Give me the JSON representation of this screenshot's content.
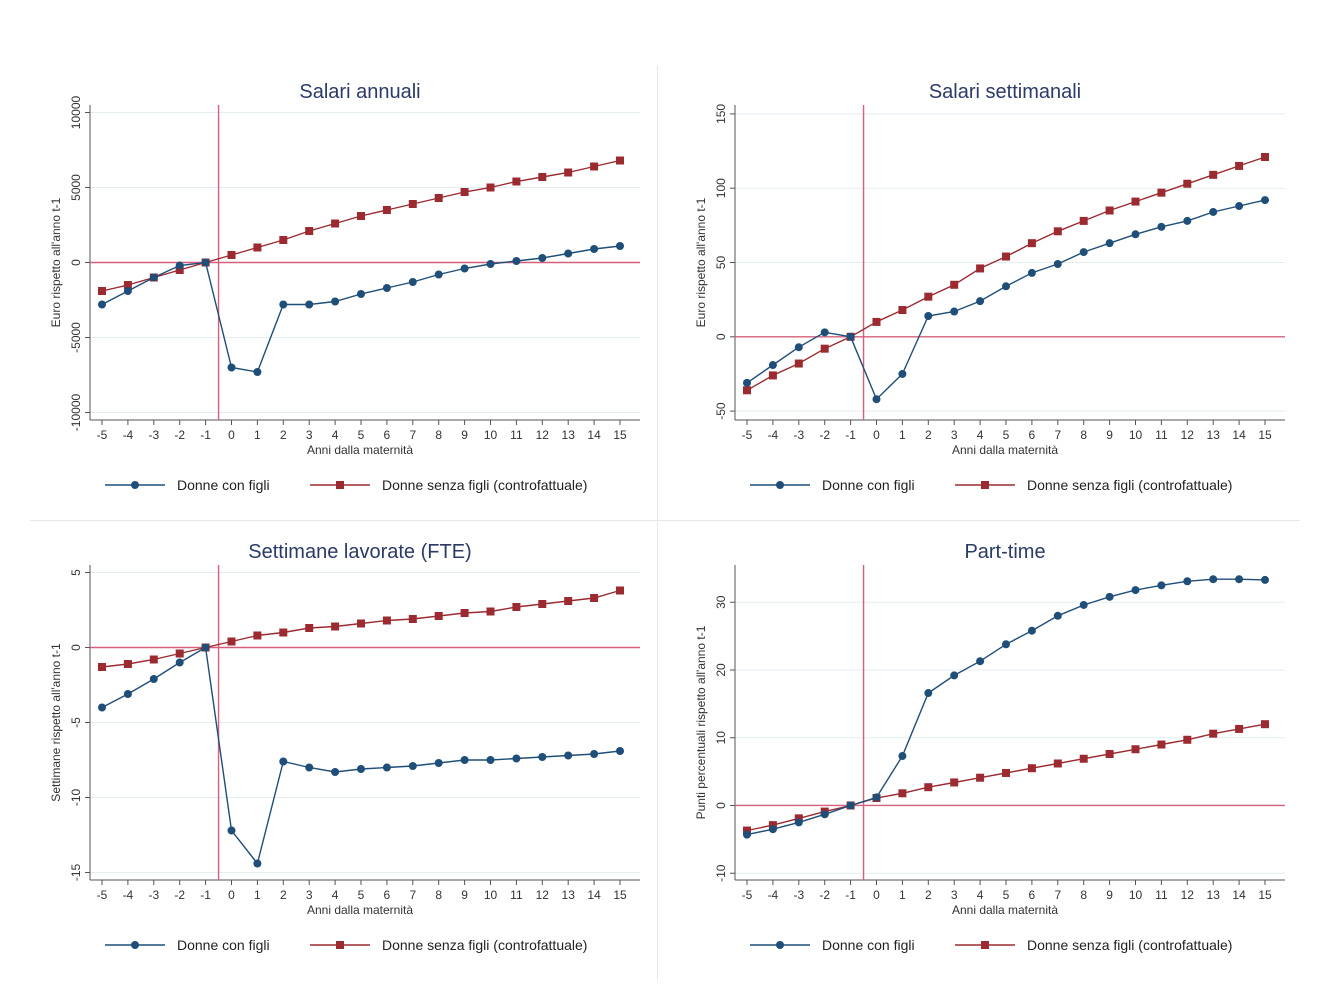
{
  "colors": {
    "blue": "#1f4e79",
    "red": "#9b2b31",
    "ref": "#d6607a",
    "grid": "#e4eef0",
    "axis": "#555555",
    "title": "#2b3a67"
  },
  "legend": {
    "with_children": "Donne con figli",
    "without_children": "Donne senza figli (controfattuale)"
  },
  "chart_data": [
    {
      "type": "line",
      "title": "Salari annuali",
      "xlabel": "Anni dalla maternità",
      "ylabel": "Euro rispetto all'anno t-1",
      "x": [
        -5,
        -4,
        -3,
        -2,
        -1,
        0,
        1,
        2,
        3,
        4,
        5,
        6,
        7,
        8,
        9,
        10,
        11,
        12,
        13,
        14,
        15
      ],
      "ylim": [
        -10500,
        10500
      ],
      "yticks": [
        -10000,
        -5000,
        0,
        5000,
        10000
      ],
      "ytick_labels": [
        "-10000",
        "-5000",
        "0",
        "5000",
        "10000"
      ],
      "xline": -0.5,
      "yline": 0,
      "series": [
        {
          "name": "Donne con figli",
          "marker": "circle",
          "values": [
            -2800,
            -1900,
            -1000,
            -200,
            0,
            -7000,
            -7300,
            -2800,
            -2800,
            -2600,
            -2100,
            -1700,
            -1300,
            -800,
            -400,
            -100,
            100,
            300,
            600,
            900,
            1100
          ]
        },
        {
          "name": "Donne senza figli (controfattuale)",
          "marker": "square",
          "values": [
            -1900,
            -1500,
            -1000,
            -500,
            0,
            500,
            1000,
            1500,
            2100,
            2600,
            3100,
            3500,
            3900,
            4300,
            4700,
            5000,
            5400,
            5700,
            6000,
            6400,
            6800
          ]
        }
      ]
    },
    {
      "type": "line",
      "title": "Salari settimanali",
      "xlabel": "Anni dalla maternità",
      "ylabel": "Euro rispetto all'anno t-1",
      "x": [
        -5,
        -4,
        -3,
        -2,
        -1,
        0,
        1,
        2,
        3,
        4,
        5,
        6,
        7,
        8,
        9,
        10,
        11,
        12,
        13,
        14,
        15
      ],
      "ylim": [
        -56,
        156
      ],
      "yticks": [
        -50,
        0,
        50,
        100,
        150
      ],
      "ytick_labels": [
        "-50",
        "0",
        "50",
        "100",
        "150"
      ],
      "xline": -0.5,
      "yline": 0,
      "series": [
        {
          "name": "Donne con figli",
          "marker": "circle",
          "values": [
            -31,
            -19,
            -7,
            3,
            0,
            -42,
            -25,
            14,
            17,
            24,
            34,
            43,
            49,
            57,
            63,
            69,
            74,
            78,
            84,
            88,
            92
          ]
        },
        {
          "name": "Donne senza figli (controfattuale)",
          "marker": "square",
          "values": [
            -36,
            -26,
            -18,
            -8,
            0,
            10,
            18,
            27,
            35,
            46,
            54,
            63,
            71,
            78,
            85,
            91,
            97,
            103,
            109,
            115,
            121
          ]
        }
      ]
    },
    {
      "type": "line",
      "title": "Settimane lavorate (FTE)",
      "xlabel": "Anni dalla maternità",
      "ylabel": "Settimane rispetto all'anno t-1",
      "x": [
        -5,
        -4,
        -3,
        -2,
        -1,
        0,
        1,
        2,
        3,
        4,
        5,
        6,
        7,
        8,
        9,
        10,
        11,
        12,
        13,
        14,
        15
      ],
      "ylim": [
        -15.5,
        5.5
      ],
      "yticks": [
        -15,
        -10,
        -5,
        0,
        5
      ],
      "ytick_labels": [
        "-15",
        "-10",
        "-5",
        "0",
        "5"
      ],
      "xline": -0.5,
      "yline": 0,
      "series": [
        {
          "name": "Donne con figli",
          "marker": "circle",
          "values": [
            -4,
            -3.1,
            -2.1,
            -1,
            0,
            -12.2,
            -14.4,
            -7.6,
            -8,
            -8.3,
            -8.1,
            -8,
            -7.9,
            -7.7,
            -7.5,
            -7.5,
            -7.4,
            -7.3,
            -7.2,
            -7.1,
            -6.9
          ]
        },
        {
          "name": "Donne senza figli (controfattuale)",
          "marker": "square",
          "values": [
            -1.3,
            -1.1,
            -0.8,
            -0.4,
            0,
            0.4,
            0.8,
            1,
            1.3,
            1.4,
            1.6,
            1.8,
            1.9,
            2.1,
            2.3,
            2.4,
            2.7,
            2.9,
            3.1,
            3.3,
            3.8
          ]
        }
      ]
    },
    {
      "type": "line",
      "title": "Part-time",
      "xlabel": "Anni dalla maternità",
      "ylabel": "Punti percentuali rispetto all'anno t-1",
      "x": [
        -5,
        -4,
        -3,
        -2,
        -1,
        0,
        1,
        2,
        3,
        4,
        5,
        6,
        7,
        8,
        9,
        10,
        11,
        12,
        13,
        14,
        15
      ],
      "ylim": [
        -11,
        35.5
      ],
      "yticks": [
        -10,
        0,
        10,
        20,
        30
      ],
      "ytick_labels": [
        "-10",
        "0",
        "10",
        "20",
        "30"
      ],
      "xline": -0.5,
      "yline": 0,
      "series": [
        {
          "name": "Donne con figli",
          "marker": "circle",
          "values": [
            -4.3,
            -3.5,
            -2.5,
            -1.3,
            0,
            1.2,
            7.3,
            16.6,
            19.2,
            21.3,
            23.8,
            25.8,
            28,
            29.6,
            30.8,
            31.8,
            32.5,
            33.1,
            33.4,
            33.4,
            33.3
          ]
        },
        {
          "name": "Donne senza figli (controfattuale)",
          "marker": "square",
          "values": [
            -3.7,
            -2.9,
            -1.9,
            -0.9,
            0,
            1.1,
            1.8,
            2.7,
            3.4,
            4.1,
            4.8,
            5.5,
            6.2,
            6.9,
            7.6,
            8.3,
            9,
            9.7,
            10.6,
            11.3,
            12
          ]
        }
      ]
    }
  ]
}
